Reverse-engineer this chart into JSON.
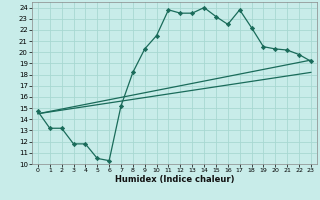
{
  "xlabel": "Humidex (Indice chaleur)",
  "bg_color": "#c8ece9",
  "grid_color": "#a8d8d2",
  "line_color": "#1a6b5a",
  "xlim": [
    -0.5,
    23.5
  ],
  "ylim": [
    10,
    24.5
  ],
  "xticks": [
    0,
    1,
    2,
    3,
    4,
    5,
    6,
    7,
    8,
    9,
    10,
    11,
    12,
    13,
    14,
    15,
    16,
    17,
    18,
    19,
    20,
    21,
    22,
    23
  ],
  "yticks": [
    10,
    11,
    12,
    13,
    14,
    15,
    16,
    17,
    18,
    19,
    20,
    21,
    22,
    23,
    24
  ],
  "curve1_x": [
    0,
    1,
    2,
    3,
    4,
    5,
    6,
    7,
    8,
    9,
    10,
    11,
    12,
    13,
    14,
    15,
    16,
    17,
    18,
    19,
    20,
    21,
    22,
    23
  ],
  "curve1_y": [
    14.7,
    13.2,
    13.2,
    11.8,
    11.8,
    10.5,
    10.3,
    15.2,
    18.2,
    20.3,
    21.5,
    23.8,
    23.5,
    23.5,
    24.0,
    23.2,
    22.5,
    23.8,
    22.2,
    20.5,
    20.3,
    20.2,
    19.8,
    19.2
  ],
  "line1_x": [
    0,
    23
  ],
  "line1_y": [
    14.5,
    18.2
  ],
  "line2_x": [
    0,
    23
  ],
  "line2_y": [
    14.5,
    19.3
  ]
}
